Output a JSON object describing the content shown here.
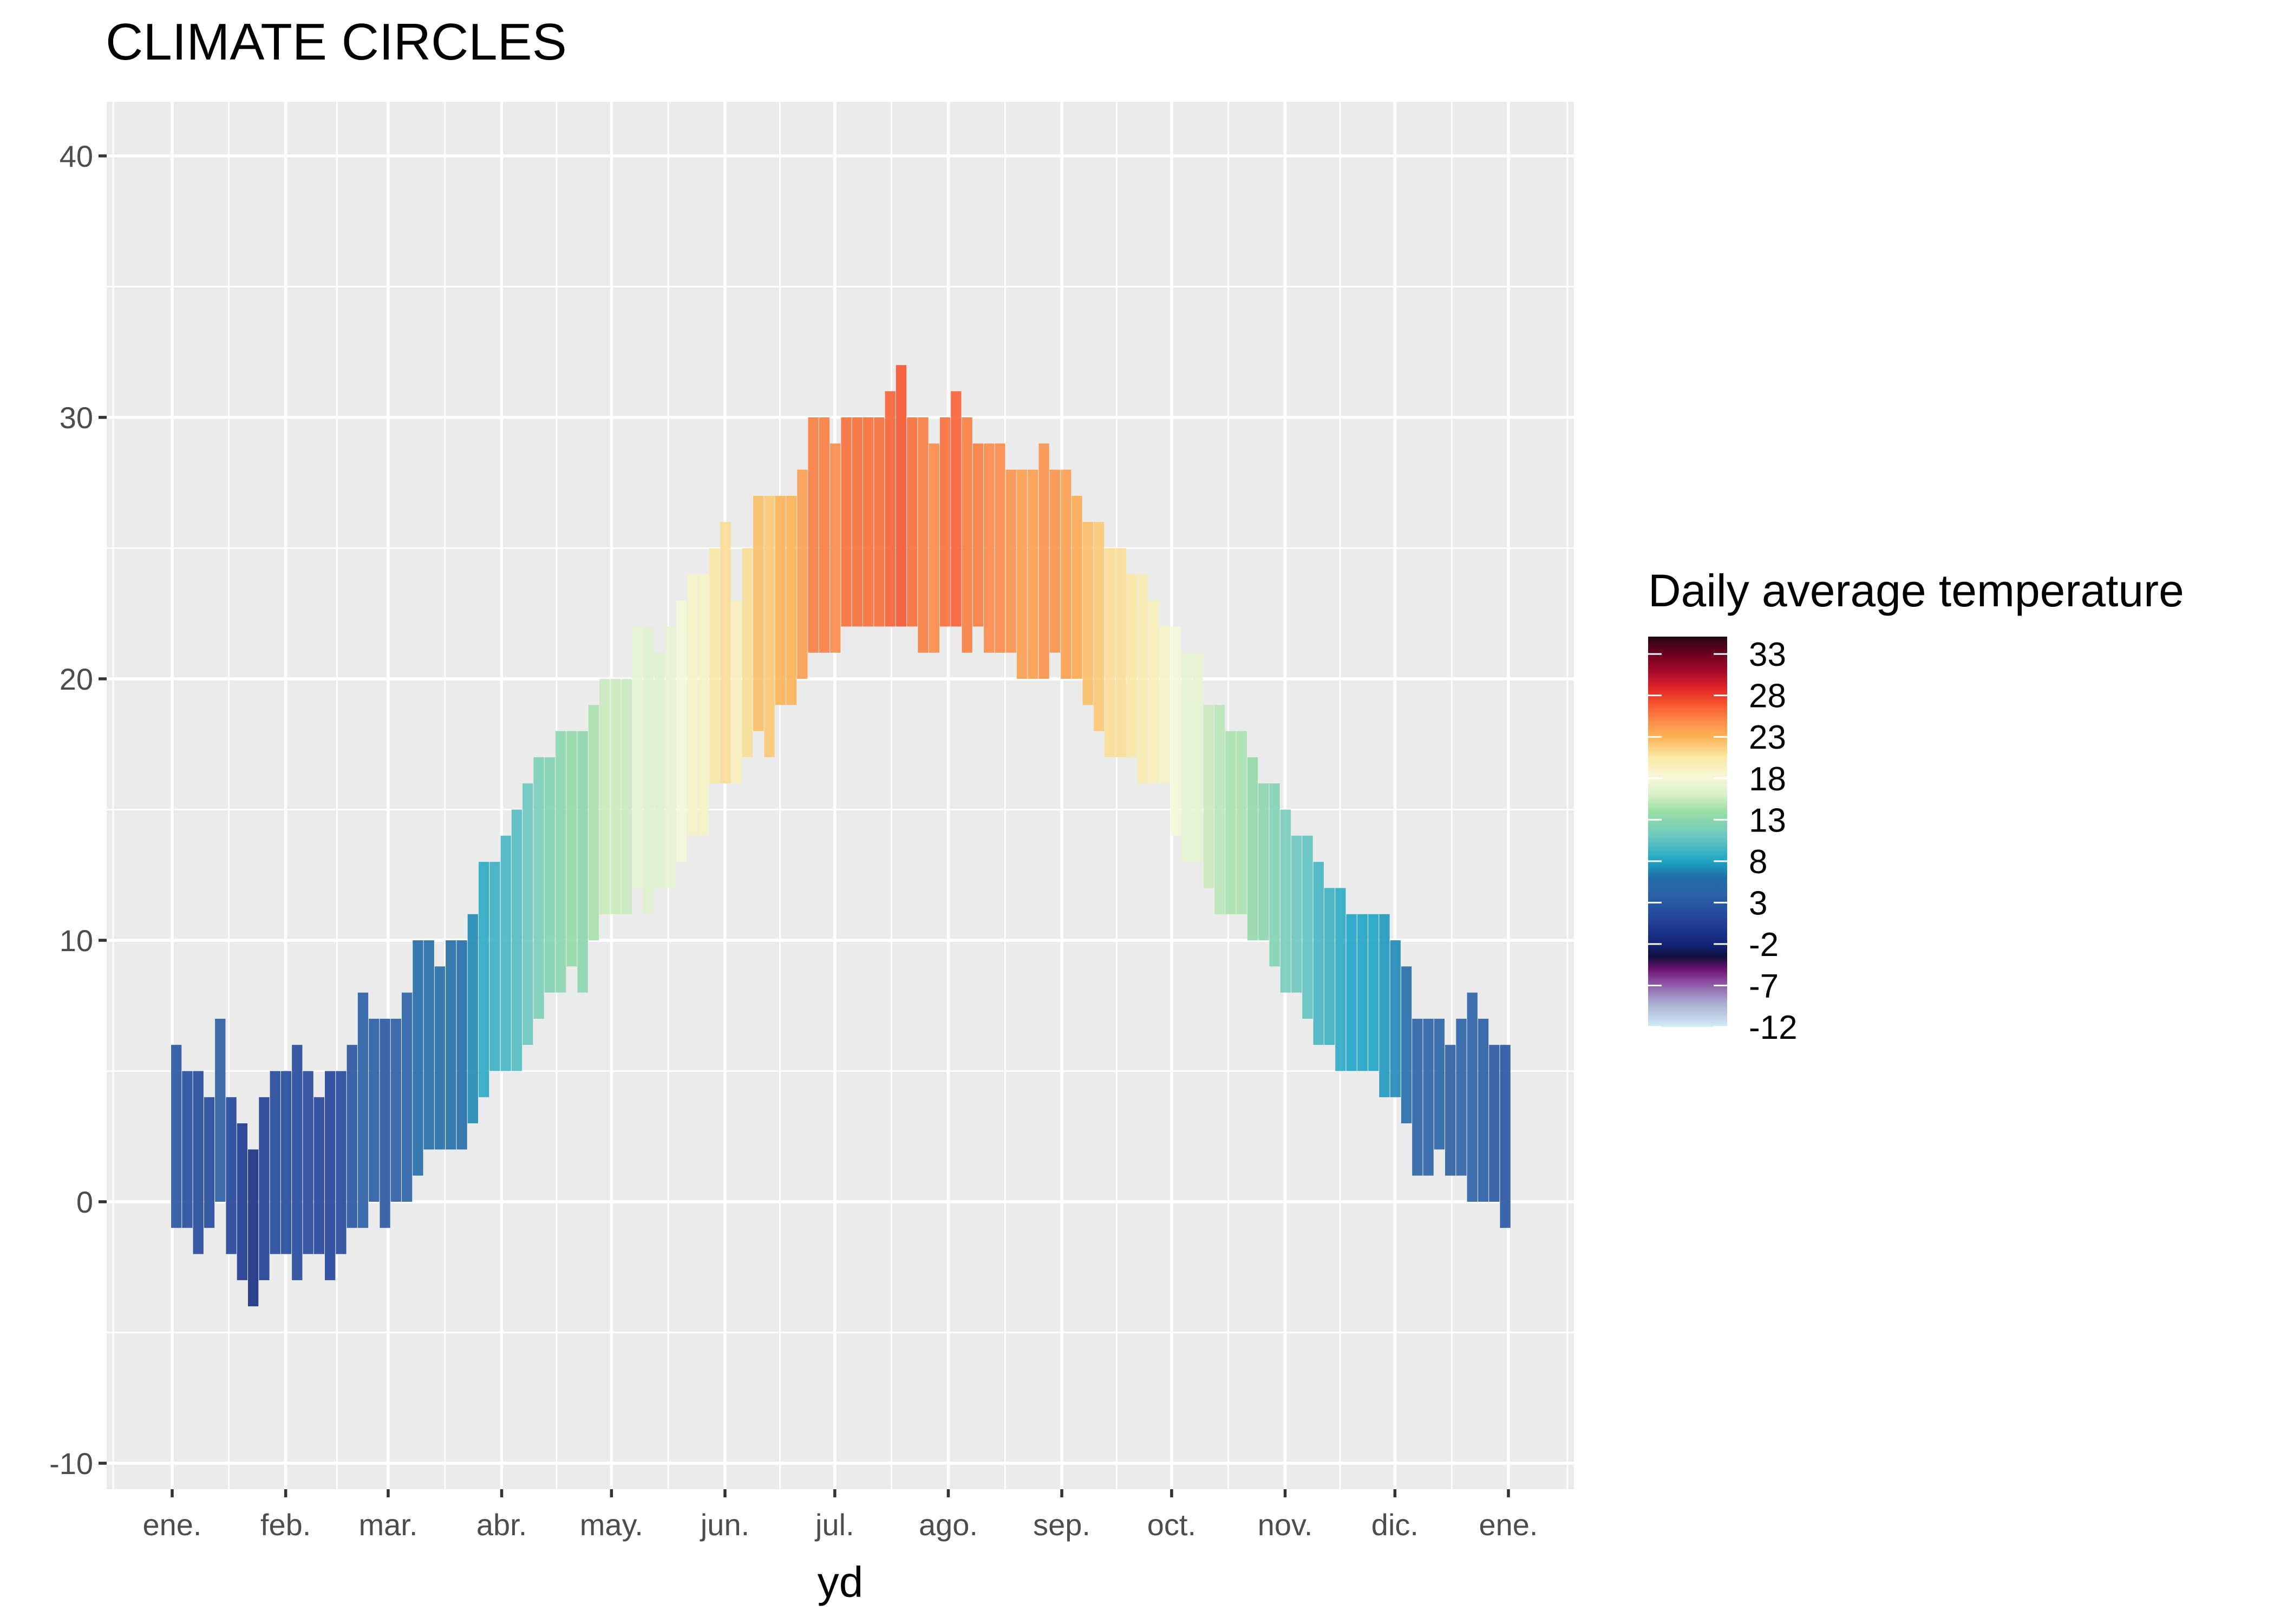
{
  "chart_data": {
    "type": "bar",
    "subtype": "range-bar (daily min/max), colored by daily average",
    "title": "CLIMATE CIRCLES",
    "xlabel": "yd",
    "ylabel": "",
    "ylim": [
      -11,
      42
    ],
    "yticks": [
      -10,
      0,
      10,
      20,
      30,
      40
    ],
    "xlim": [
      1,
      366
    ],
    "xticks": [
      {
        "day": 1,
        "label": "ene."
      },
      {
        "day": 32,
        "label": "feb."
      },
      {
        "day": 60,
        "label": "mar."
      },
      {
        "day": 91,
        "label": "abr."
      },
      {
        "day": 121,
        "label": "may."
      },
      {
        "day": 152,
        "label": "jun."
      },
      {
        "day": 182,
        "label": "jul."
      },
      {
        "day": 213,
        "label": "ago."
      },
      {
        "day": 244,
        "label": "sep."
      },
      {
        "day": 274,
        "label": "oct."
      },
      {
        "day": 305,
        "label": "nov."
      },
      {
        "day": 335,
        "label": "dic."
      },
      {
        "day": 366,
        "label": "ene."
      }
    ],
    "grid": true,
    "days": [
      1,
      4,
      7,
      10,
      13,
      16,
      19,
      22,
      25,
      28,
      31,
      34,
      37,
      40,
      43,
      46,
      49,
      52,
      55,
      58,
      61,
      64,
      67,
      70,
      73,
      76,
      79,
      82,
      85,
      88,
      91,
      94,
      97,
      100,
      103,
      106,
      109,
      112,
      115,
      118,
      121,
      124,
      127,
      130,
      133,
      136,
      139,
      142,
      145,
      148,
      151,
      154,
      157,
      160,
      163,
      166,
      169,
      172,
      175,
      178,
      181,
      184,
      187,
      190,
      193,
      196,
      199,
      202,
      205,
      208,
      211,
      214,
      217,
      220,
      223,
      226,
      229,
      232,
      235,
      238,
      241,
      244,
      247,
      250,
      253,
      256,
      259,
      262,
      265,
      268,
      271,
      274,
      277,
      280,
      283,
      286,
      289,
      292,
      295,
      298,
      301,
      304,
      307,
      310,
      313,
      316,
      319,
      322,
      325,
      328,
      331,
      334,
      337,
      340,
      343,
      346,
      349,
      352,
      355,
      358,
      361,
      364
    ],
    "tmin": [
      -1,
      -1,
      -2,
      -1,
      0,
      -2,
      -3,
      -4,
      -3,
      -2,
      -2,
      -3,
      -2,
      -2,
      -3,
      -2,
      -1,
      -1,
      0,
      -1,
      0,
      0,
      1,
      2,
      2,
      2,
      2,
      3,
      4,
      5,
      5,
      5,
      6,
      7,
      8,
      8,
      9,
      8,
      10,
      11,
      11,
      11,
      12,
      11,
      12,
      12,
      13,
      14,
      14,
      16,
      16,
      16,
      17,
      18,
      17,
      19,
      19,
      20,
      21,
      21,
      21,
      22,
      22,
      22,
      22,
      22,
      22,
      22,
      21,
      21,
      22,
      22,
      21,
      22,
      21,
      21,
      21,
      20,
      20,
      20,
      21,
      20,
      20,
      19,
      18,
      17,
      17,
      17,
      16,
      16,
      16,
      14,
      13,
      13,
      12,
      11,
      11,
      11,
      10,
      10,
      9,
      8,
      8,
      7,
      6,
      6,
      5,
      5,
      5,
      5,
      4,
      4,
      3,
      1,
      1,
      2,
      1,
      1,
      0,
      0,
      0,
      -1
    ],
    "tmax": [
      6,
      5,
      5,
      4,
      7,
      4,
      3,
      2,
      4,
      5,
      5,
      6,
      5,
      4,
      5,
      5,
      6,
      8,
      7,
      7,
      7,
      8,
      10,
      10,
      9,
      10,
      10,
      11,
      13,
      13,
      14,
      15,
      16,
      17,
      17,
      18,
      18,
      18,
      19,
      20,
      20,
      20,
      22,
      22,
      21,
      22,
      23,
      24,
      24,
      25,
      26,
      23,
      25,
      27,
      27,
      27,
      27,
      28,
      30,
      30,
      29,
      30,
      30,
      30,
      30,
      31,
      32,
      30,
      30,
      29,
      30,
      31,
      30,
      29,
      29,
      29,
      28,
      28,
      28,
      29,
      28,
      28,
      27,
      26,
      26,
      25,
      25,
      24,
      24,
      23,
      22,
      22,
      21,
      21,
      19,
      19,
      18,
      18,
      17,
      16,
      16,
      15,
      14,
      14,
      13,
      12,
      12,
      11,
      11,
      11,
      11,
      10,
      9,
      7,
      7,
      7,
      6,
      7,
      8,
      7,
      6,
      6
    ],
    "legend": {
      "title": "Daily average temperature",
      "position": "right",
      "range": [
        -12,
        35.1
      ],
      "ticks": [
        33,
        28,
        23,
        18,
        13,
        8,
        3,
        -2,
        -7,
        -12
      ],
      "labels": [
        "33",
        "28",
        "23",
        "18",
        "13",
        "8",
        "3",
        "-2",
        "-7",
        "-12"
      ],
      "colorscale": [
        [
          -12,
          "#d2eef7"
        ],
        [
          -9,
          "#a7a9cf"
        ],
        [
          -6.5,
          "#8b4aa0"
        ],
        [
          -5,
          "#6a1270"
        ],
        [
          -3.5,
          "#0e0f3c"
        ],
        [
          -2,
          "#132477"
        ],
        [
          1,
          "#23449a"
        ],
        [
          4,
          "#2b63a8"
        ],
        [
          6,
          "#226ea8"
        ],
        [
          8,
          "#1ea4c4"
        ],
        [
          11,
          "#6cc8c0"
        ],
        [
          14,
          "#9adea4"
        ],
        [
          16,
          "#d8efc7"
        ],
        [
          18,
          "#f5f9d9"
        ],
        [
          20.5,
          "#fbe9a6"
        ],
        [
          23,
          "#fcb356"
        ],
        [
          25,
          "#fb8a47"
        ],
        [
          27,
          "#f6542e"
        ],
        [
          29,
          "#e0212a"
        ],
        [
          31,
          "#a30a2a"
        ],
        [
          33,
          "#6d0121"
        ],
        [
          35.1,
          "#260611"
        ]
      ]
    }
  }
}
